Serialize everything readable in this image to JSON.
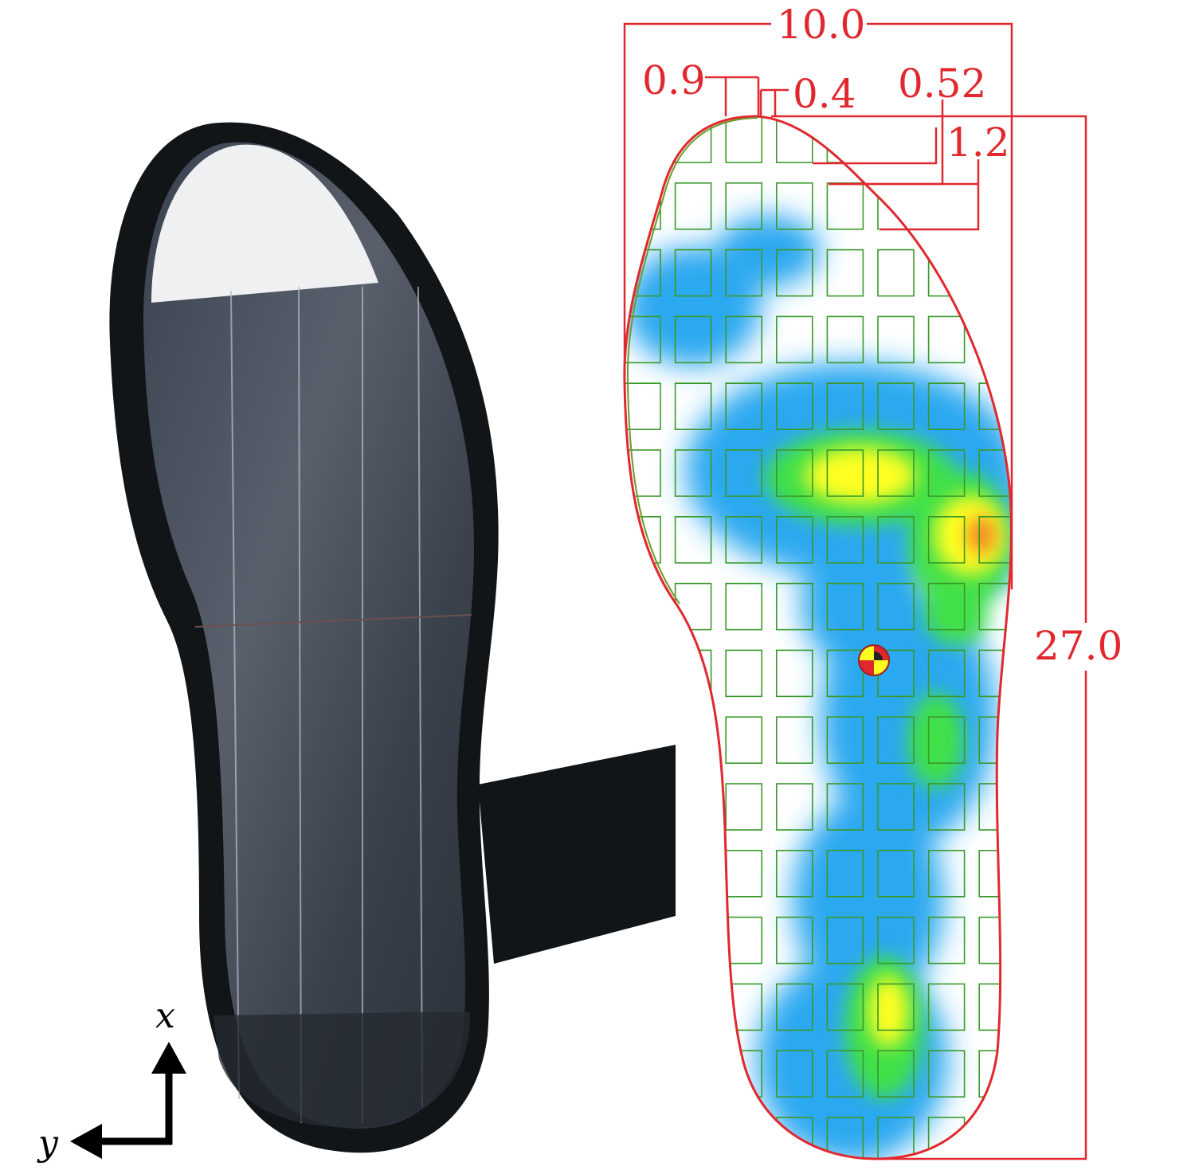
{
  "dimensions": {
    "total_width": "10.0",
    "total_length": "27.0",
    "sensor_width": "0.9",
    "sensor_gap": "0.4",
    "row_gap": "0.52",
    "row_pitch": "1.2"
  },
  "axes": {
    "x": "x",
    "y": "y"
  },
  "colors": {
    "dimension_lines": "#e0282e",
    "sensor_grid": "#3a9a2a",
    "insole_outline": "#8a8a3a",
    "shoe_sole": "#121518",
    "pressure_low": "#2aa8f0",
    "pressure_mid": "#3fe04a",
    "pressure_high": "#ffff20",
    "pressure_peak": "#f08020"
  },
  "icons": {
    "center_of_pressure": "center-of-pressure-marker-icon"
  }
}
